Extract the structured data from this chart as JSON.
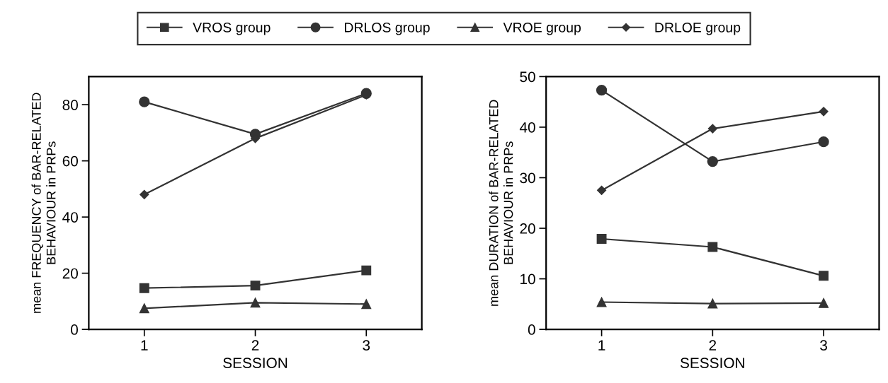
{
  "chart_data": [
    {
      "type": "line",
      "x": [
        1,
        2,
        3
      ],
      "xlim": [
        0.5,
        3.5
      ],
      "xticks": [
        1,
        2,
        3
      ],
      "ylim": [
        0,
        90
      ],
      "yticks": [
        0,
        20,
        40,
        60,
        80
      ],
      "xlabel": "SESSION",
      "ylabel": "mean FREQUENCY of BAR-RELATED\nBEHAVIOUR in PRPs",
      "grid": false,
      "legend": "top",
      "line_style": "solid",
      "series": [
        {
          "name": "VROS group",
          "color": "#333333",
          "marker": "square",
          "values": [
            14.7,
            15.6,
            21
          ]
        },
        {
          "name": "DRLOS group",
          "color": "#333333",
          "marker": "circle",
          "values": [
            81,
            69.5,
            84
          ]
        },
        {
          "name": "VROE group",
          "color": "#333333",
          "marker": "triangle",
          "values": [
            7.5,
            9.5,
            9
          ]
        },
        {
          "name": "DRLOE group",
          "color": "#333333",
          "marker": "diamond",
          "values": [
            48,
            68,
            83.5
          ]
        }
      ]
    },
    {
      "type": "line",
      "x": [
        1,
        2,
        3
      ],
      "xlim": [
        0.5,
        3.5
      ],
      "xticks": [
        1,
        2,
        3
      ],
      "ylim": [
        0,
        50
      ],
      "yticks": [
        0,
        10,
        20,
        30,
        40,
        50
      ],
      "xlabel": "SESSION",
      "ylabel": "mean DURATION of BAR-RELATED\nBEHAVIOUR in PRPs",
      "grid": false,
      "legend": "top",
      "line_style": "solid",
      "series": [
        {
          "name": "VROS group",
          "color": "#333333",
          "marker": "square",
          "values": [
            17.9,
            16.3,
            10.6
          ]
        },
        {
          "name": "DRLOS group",
          "color": "#333333",
          "marker": "circle",
          "values": [
            47.3,
            33.2,
            37.1
          ]
        },
        {
          "name": "VROE group",
          "color": "#333333",
          "marker": "triangle",
          "values": [
            5.4,
            5.1,
            5.2
          ]
        },
        {
          "name": "DRLOE group",
          "color": "#333333",
          "marker": "diamond",
          "values": [
            27.5,
            39.7,
            43.1
          ]
        }
      ]
    }
  ]
}
